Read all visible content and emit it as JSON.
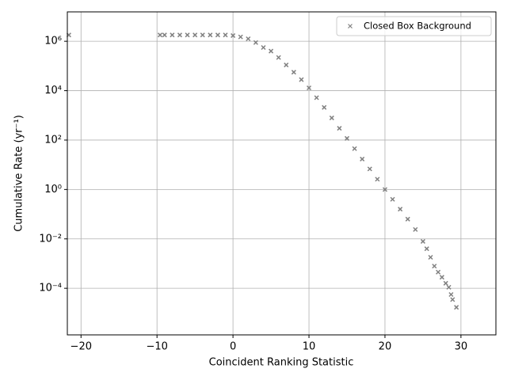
{
  "chart_data": {
    "type": "scatter",
    "x_label": "Coincident Ranking Statistic",
    "y_label": "Cumulative Rate (yr⁻¹)",
    "x": [
      -21.6,
      -9.6,
      -9,
      -8,
      -7,
      -6,
      -5,
      -4,
      -3,
      -2,
      -1,
      0,
      1,
      2,
      3,
      4,
      5,
      6,
      7,
      8,
      9,
      10,
      11,
      12,
      13,
      14,
      15,
      16,
      17,
      18,
      19,
      20,
      21,
      22,
      23,
      24,
      25,
      25.5,
      26,
      26.5,
      27,
      27.5,
      28,
      28.4,
      28.7,
      28.9,
      29.4
    ],
    "series": [
      {
        "name": "Closed Box Background",
        "color": "#808080",
        "marker": "x",
        "values": [
          1800000,
          1800000,
          1800000,
          1800000,
          1800000,
          1800000,
          1800000,
          1800000,
          1800000,
          1800000,
          1800000,
          1700000,
          1500000,
          1260000,
          890000,
          560000,
          400000,
          220000,
          110000,
          56000,
          28000,
          13000,
          5200,
          2100,
          790,
          300,
          117,
          45,
          17,
          6.8,
          2.6,
          1.0,
          0.4,
          0.16,
          0.063,
          0.024,
          0.0079,
          0.004,
          0.0018,
          0.00079,
          0.00045,
          0.00028,
          0.00016,
          0.00011,
          5.6e-05,
          3.5e-05,
          1.7e-05
        ]
      }
    ],
    "xlim": [
      -21.8,
      34.6
    ],
    "ylim": [
      1.3e-06,
      15500000
    ],
    "yscale": "log",
    "xticks": [
      {
        "value": -20,
        "label": "−20"
      },
      {
        "value": -10,
        "label": "−10"
      },
      0,
      10,
      20,
      30
    ],
    "yticks": [
      {
        "value": 0.0001,
        "label": "10⁻⁴"
      },
      {
        "value": 0.01,
        "label": "10⁻²"
      },
      {
        "value": 1,
        "label": "10⁰"
      },
      {
        "value": 100,
        "label": "10²"
      },
      {
        "value": 10000,
        "label": "10⁴"
      },
      {
        "value": 1000000,
        "label": "10⁶"
      }
    ],
    "grid": true,
    "legend": "upper right"
  }
}
